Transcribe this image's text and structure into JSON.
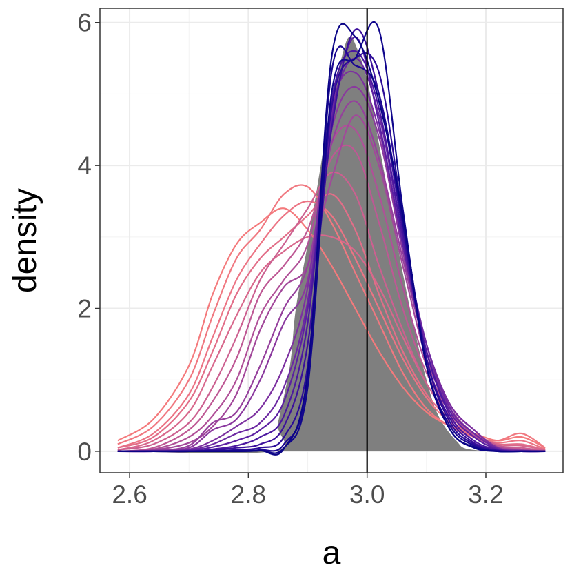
{
  "chart_data": {
    "type": "area",
    "xlabel": "a",
    "ylabel": "density",
    "xlim": [
      2.55,
      3.33
    ],
    "ylim": [
      -0.3,
      6.2
    ],
    "x_ticks": [
      2.6,
      2.8,
      3.0,
      3.2
    ],
    "x_tick_labels": [
      "2.6",
      "2.8",
      "3.0",
      "3.2"
    ],
    "y_ticks": [
      0,
      2,
      4,
      6
    ],
    "y_tick_labels": [
      "0",
      "2",
      "4",
      "6"
    ],
    "grid": true,
    "reference_line": {
      "x": 3.0,
      "color": "#000000"
    },
    "filled_density": {
      "color": "#7f7f7f",
      "x": [
        2.58,
        2.84,
        2.85,
        2.87,
        2.88,
        2.9,
        2.92,
        2.94,
        2.96,
        2.97,
        2.98,
        3.0,
        3.02,
        3.04,
        3.06,
        3.08,
        3.1,
        3.12,
        3.15,
        3.18,
        3.3
      ],
      "y": [
        0.0,
        0.0,
        0.4,
        1.2,
        2.0,
        2.9,
        3.9,
        4.9,
        5.6,
        5.8,
        5.7,
        5.2,
        4.3,
        3.4,
        2.5,
        1.7,
        1.0,
        0.5,
        0.15,
        0.02,
        0.0
      ]
    },
    "curve_colors": {
      "early": "#f07878",
      "mid": "#8a2a8e",
      "late": "#1a0a90"
    },
    "series": [
      {
        "color": "#f47a7c",
        "x": [
          2.58,
          2.64,
          2.7,
          2.74,
          2.78,
          2.82,
          2.86,
          2.9,
          2.94,
          2.98,
          3.02,
          3.06,
          3.1,
          3.14,
          3.18,
          3.22,
          3.26,
          3.3
        ],
        "y": [
          0.15,
          0.45,
          1.2,
          2.2,
          2.9,
          3.2,
          3.4,
          3.1,
          2.6,
          2.0,
          1.4,
          0.9,
          0.55,
          0.35,
          0.25,
          0.15,
          0.2,
          0.05
        ]
      },
      {
        "color": "#f07880",
        "x": [
          2.58,
          2.64,
          2.7,
          2.74,
          2.78,
          2.82,
          2.86,
          2.9,
          2.94,
          2.98,
          3.02,
          3.06,
          3.1,
          3.14,
          3.18,
          3.22,
          3.26,
          3.3
        ],
        "y": [
          0.1,
          0.35,
          1.0,
          1.9,
          2.7,
          3.1,
          3.6,
          3.7,
          3.2,
          2.5,
          1.8,
          1.1,
          0.6,
          0.35,
          0.2,
          0.15,
          0.25,
          0.05
        ]
      },
      {
        "color": "#ec7484",
        "x": [
          2.58,
          2.64,
          2.7,
          2.74,
          2.78,
          2.82,
          2.86,
          2.9,
          2.94,
          2.98,
          3.02,
          3.06,
          3.1,
          3.14,
          3.18,
          3.22,
          3.26,
          3.3
        ],
        "y": [
          0.05,
          0.25,
          0.8,
          1.6,
          2.4,
          2.9,
          3.3,
          3.5,
          3.3,
          2.7,
          2.0,
          1.3,
          0.75,
          0.4,
          0.2,
          0.12,
          0.15,
          0.03
        ]
      },
      {
        "color": "#e26e88",
        "x": [
          2.58,
          2.64,
          2.7,
          2.74,
          2.78,
          2.82,
          2.86,
          2.9,
          2.94,
          2.98,
          3.02,
          3.06,
          3.1,
          3.14,
          3.18,
          3.22,
          3.26,
          3.3
        ],
        "y": [
          0.05,
          0.2,
          0.7,
          1.4,
          2.2,
          2.7,
          3.0,
          3.3,
          3.6,
          3.1,
          2.2,
          1.4,
          0.8,
          0.45,
          0.2,
          0.1,
          0.1,
          0.02
        ]
      },
      {
        "color": "#d8688c",
        "x": [
          2.58,
          2.64,
          2.7,
          2.74,
          2.78,
          2.82,
          2.86,
          2.9,
          2.94,
          2.98,
          3.02,
          3.06,
          3.1,
          3.14,
          3.18,
          3.22,
          3.26,
          3.3
        ],
        "y": [
          0.02,
          0.15,
          0.55,
          1.2,
          1.9,
          2.5,
          2.8,
          3.0,
          3.0,
          2.8,
          2.3,
          1.6,
          0.95,
          0.5,
          0.25,
          0.1,
          0.08,
          0.02
        ]
      },
      {
        "color": "#cc6090",
        "x": [
          2.58,
          2.64,
          2.7,
          2.74,
          2.78,
          2.82,
          2.86,
          2.9,
          2.94,
          2.98,
          3.02,
          3.06,
          3.1,
          3.14,
          3.18,
          3.22,
          3.26,
          3.3
        ],
        "y": [
          0.02,
          0.1,
          0.4,
          0.9,
          1.6,
          2.4,
          2.9,
          3.4,
          3.9,
          3.6,
          2.6,
          1.7,
          0.95,
          0.5,
          0.22,
          0.08,
          0.05,
          0.01
        ]
      },
      {
        "color": "#be5894",
        "x": [
          2.58,
          2.64,
          2.7,
          2.74,
          2.78,
          2.82,
          2.86,
          2.9,
          2.94,
          2.98,
          3.02,
          3.06,
          3.1,
          3.14,
          3.18,
          3.22,
          3.26,
          3.3
        ],
        "y": [
          0.0,
          0.05,
          0.3,
          0.7,
          1.3,
          2.2,
          2.6,
          3.1,
          4.1,
          4.2,
          3.2,
          2.0,
          1.1,
          0.55,
          0.25,
          0.08,
          0.03,
          0.0
        ]
      },
      {
        "color": "#b05098",
        "x": [
          2.58,
          2.64,
          2.7,
          2.74,
          2.78,
          2.82,
          2.86,
          2.9,
          2.94,
          2.98,
          3.02,
          3.06,
          3.1,
          3.14,
          3.18,
          3.22,
          3.26,
          3.3
        ],
        "y": [
          0.0,
          0.03,
          0.2,
          0.5,
          1.0,
          1.9,
          2.4,
          2.9,
          4.3,
          4.5,
          3.6,
          2.3,
          1.2,
          0.55,
          0.22,
          0.06,
          0.02,
          0.0
        ]
      },
      {
        "color": "#a2489a",
        "x": [
          2.58,
          2.64,
          2.7,
          2.74,
          2.78,
          2.82,
          2.86,
          2.9,
          2.94,
          2.98,
          3.02,
          3.06,
          3.1,
          3.14,
          3.18,
          3.22,
          3.26,
          3.3
        ],
        "y": [
          0.0,
          0.02,
          0.12,
          0.35,
          0.8,
          1.7,
          2.3,
          2.6,
          3.8,
          4.7,
          4.0,
          2.6,
          1.3,
          0.6,
          0.25,
          0.06,
          0.02,
          0.0
        ]
      },
      {
        "color": "#95409c",
        "x": [
          2.58,
          2.64,
          2.7,
          2.74,
          2.78,
          2.82,
          2.86,
          2.9,
          2.94,
          2.98,
          3.02,
          3.06,
          3.1,
          3.14,
          3.18,
          3.22,
          3.26,
          3.3
        ],
        "y": [
          0.0,
          0.01,
          0.08,
          0.4,
          0.55,
          1.2,
          2.0,
          2.6,
          4.3,
          4.9,
          4.1,
          2.7,
          1.4,
          0.6,
          0.25,
          0.05,
          0.01,
          0.0
        ]
      },
      {
        "color": "#8a389e",
        "x": [
          2.58,
          2.64,
          2.7,
          2.74,
          2.78,
          2.82,
          2.86,
          2.9,
          2.94,
          2.98,
          3.02,
          3.06,
          3.1,
          3.14,
          3.18,
          3.22,
          3.26,
          3.3
        ],
        "y": [
          0.0,
          0.01,
          0.05,
          0.3,
          0.45,
          1.0,
          1.8,
          2.4,
          4.5,
          5.1,
          4.4,
          2.8,
          1.4,
          0.65,
          0.3,
          0.05,
          0.01,
          0.0
        ]
      },
      {
        "color": "#7c30a0",
        "x": [
          2.58,
          2.64,
          2.7,
          2.74,
          2.78,
          2.82,
          2.86,
          2.9,
          2.94,
          2.98,
          3.02,
          3.06,
          3.1,
          3.14,
          3.18,
          3.22,
          3.26,
          3.3
        ],
        "y": [
          0.0,
          0.0,
          0.03,
          0.15,
          0.35,
          0.6,
          1.2,
          2.3,
          4.8,
          5.3,
          4.5,
          2.9,
          1.5,
          0.65,
          0.3,
          0.05,
          0.01,
          0.0
        ]
      },
      {
        "color": "#6c28a2",
        "x": [
          2.58,
          2.64,
          2.7,
          2.74,
          2.78,
          2.82,
          2.86,
          2.9,
          2.94,
          2.98,
          3.02,
          3.06,
          3.1,
          3.14,
          3.18,
          3.22,
          3.26,
          3.3
        ],
        "y": [
          0.0,
          0.0,
          0.02,
          0.1,
          0.25,
          0.4,
          0.9,
          2.1,
          4.7,
          5.5,
          4.7,
          3.0,
          1.5,
          0.6,
          0.25,
          0.04,
          0.0,
          0.0
        ]
      },
      {
        "color": "#5c20a2",
        "x": [
          2.58,
          2.64,
          2.7,
          2.74,
          2.78,
          2.82,
          2.86,
          2.9,
          2.94,
          2.98,
          3.02,
          3.06,
          3.1,
          3.14,
          3.18,
          3.22,
          3.26,
          3.3
        ],
        "y": [
          0.0,
          0.0,
          0.01,
          0.06,
          0.15,
          0.3,
          0.7,
          2.0,
          4.6,
          5.8,
          4.6,
          2.9,
          1.4,
          0.55,
          0.2,
          0.03,
          0.0,
          0.0
        ]
      },
      {
        "color": "#4c18a0",
        "x": [
          2.58,
          2.64,
          2.7,
          2.74,
          2.78,
          2.82,
          2.86,
          2.9,
          2.94,
          2.98,
          3.02,
          3.06,
          3.1,
          3.14,
          3.18,
          3.22,
          3.26,
          3.3
        ],
        "y": [
          0.0,
          0.0,
          0.0,
          0.03,
          0.08,
          0.2,
          0.5,
          1.8,
          4.9,
          5.6,
          4.8,
          3.0,
          1.4,
          0.5,
          0.15,
          0.02,
          0.0,
          0.0
        ]
      },
      {
        "color": "#3c109c",
        "x": [
          2.58,
          2.64,
          2.7,
          2.74,
          2.78,
          2.82,
          2.86,
          2.9,
          2.94,
          2.98,
          3.02,
          3.06,
          3.1,
          3.14,
          3.18,
          3.22,
          3.26,
          3.3
        ],
        "y": [
          0.0,
          0.0,
          0.0,
          0.02,
          0.05,
          0.1,
          0.35,
          1.5,
          4.5,
          5.9,
          5.0,
          3.1,
          1.3,
          0.45,
          0.12,
          0.01,
          0.0,
          0.0
        ]
      },
      {
        "color": "#2c0c98",
        "x": [
          2.58,
          2.64,
          2.7,
          2.74,
          2.78,
          2.82,
          2.86,
          2.9,
          2.94,
          2.98,
          3.02,
          3.06,
          3.1,
          3.14,
          3.18,
          3.22,
          3.26,
          3.3
        ],
        "y": [
          0.0,
          0.0,
          0.0,
          0.01,
          0.02,
          0.05,
          0.2,
          1.2,
          4.8,
          5.5,
          5.3,
          3.3,
          1.3,
          0.4,
          0.1,
          0.01,
          0.0,
          0.0
        ]
      },
      {
        "color": "#1c0892",
        "x": [
          2.58,
          2.64,
          2.7,
          2.74,
          2.78,
          2.82,
          2.86,
          2.9,
          2.94,
          2.98,
          3.02,
          3.06,
          3.1,
          3.14,
          3.18,
          3.22,
          3.26,
          3.3
        ],
        "y": [
          0.0,
          0.0,
          0.0,
          0.0,
          0.01,
          0.02,
          0.1,
          1.0,
          5.3,
          5.4,
          5.0,
          3.2,
          1.2,
          0.35,
          0.08,
          0.0,
          0.0,
          0.0
        ]
      },
      {
        "color": "#10068c",
        "x": [
          2.58,
          2.64,
          2.7,
          2.74,
          2.78,
          2.82,
          2.86,
          2.9,
          2.94,
          2.98,
          3.02,
          3.06,
          3.1,
          3.14,
          3.18,
          3.22,
          3.26,
          3.3
        ],
        "y": [
          0.0,
          0.0,
          0.0,
          0.0,
          0.0,
          0.01,
          0.05,
          0.9,
          5.0,
          5.5,
          5.9,
          3.4,
          1.2,
          0.3,
          0.05,
          0.0,
          0.0,
          0.0
        ]
      },
      {
        "color": "#0a0486",
        "x": [
          2.58,
          2.64,
          2.7,
          2.74,
          2.78,
          2.82,
          2.86,
          2.9,
          2.94,
          2.98,
          3.02,
          3.06,
          3.1,
          3.14,
          3.18,
          3.22,
          3.26,
          3.3
        ],
        "y": [
          0.0,
          0.0,
          0.0,
          0.0,
          0.0,
          0.01,
          0.04,
          1.1,
          5.5,
          5.8,
          4.9,
          3.3,
          1.2,
          0.3,
          0.06,
          0.0,
          0.0,
          0.0
        ]
      }
    ]
  }
}
